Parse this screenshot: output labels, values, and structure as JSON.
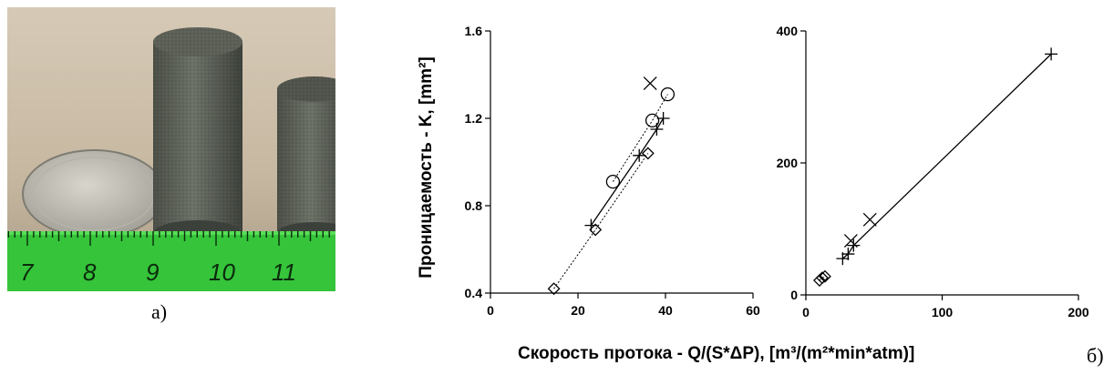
{
  "captions": {
    "a": "а)",
    "b": "б)"
  },
  "photo": {
    "icon": "coin-and-porous-cylinders-photo",
    "ruler_numbers": [
      "7",
      "8",
      "9",
      "10",
      "11"
    ]
  },
  "axes": {
    "ylabel": "Проницаемость - K, [mm²]",
    "xlabel": "Скорость протока - Q/(S*ΔP), [m³/(m²*min*atm)]"
  },
  "chart_data": [
    {
      "type": "scatter",
      "xlim": [
        0,
        60
      ],
      "ylim": [
        0.4,
        1.6
      ],
      "x_ticks": [
        0,
        20,
        40,
        60
      ],
      "y_ticks": [
        0.4,
        0.8,
        1.2,
        1.6
      ],
      "series": [
        {
          "marker": "diamond",
          "line": "dotted",
          "points": [
            [
              14.5,
              0.42
            ],
            [
              24,
              0.69
            ],
            [
              36,
              1.04
            ]
          ]
        },
        {
          "marker": "plus",
          "line": "solid",
          "points": [
            [
              23,
              0.71
            ],
            [
              34,
              1.03
            ],
            [
              38,
              1.15
            ],
            [
              39.5,
              1.2
            ]
          ]
        },
        {
          "marker": "circle",
          "line": "dotted",
          "points": [
            [
              28,
              0.91
            ],
            [
              37,
              1.19
            ],
            [
              40.5,
              1.31
            ]
          ]
        },
        {
          "marker": "cross",
          "line": "none",
          "points": [
            [
              36.5,
              1.36
            ]
          ]
        }
      ]
    },
    {
      "type": "scatter",
      "xlim": [
        0,
        200
      ],
      "ylim": [
        0,
        400
      ],
      "x_ticks": [
        0,
        100,
        200
      ],
      "y_ticks": [
        0,
        200,
        400
      ],
      "series": [
        {
          "marker": "diamond",
          "line": "dotted",
          "points": [
            [
              10,
              22
            ],
            [
              12,
              26
            ],
            [
              14,
              28
            ]
          ]
        },
        {
          "marker": "plus",
          "line": "solid",
          "points": [
            [
              27,
              55
            ],
            [
              31,
              62
            ],
            [
              35,
              75
            ],
            [
              180,
              365
            ]
          ]
        },
        {
          "marker": "cross",
          "line": "none",
          "points": [
            [
              33,
              82
            ],
            [
              47,
              114
            ]
          ]
        }
      ]
    }
  ]
}
